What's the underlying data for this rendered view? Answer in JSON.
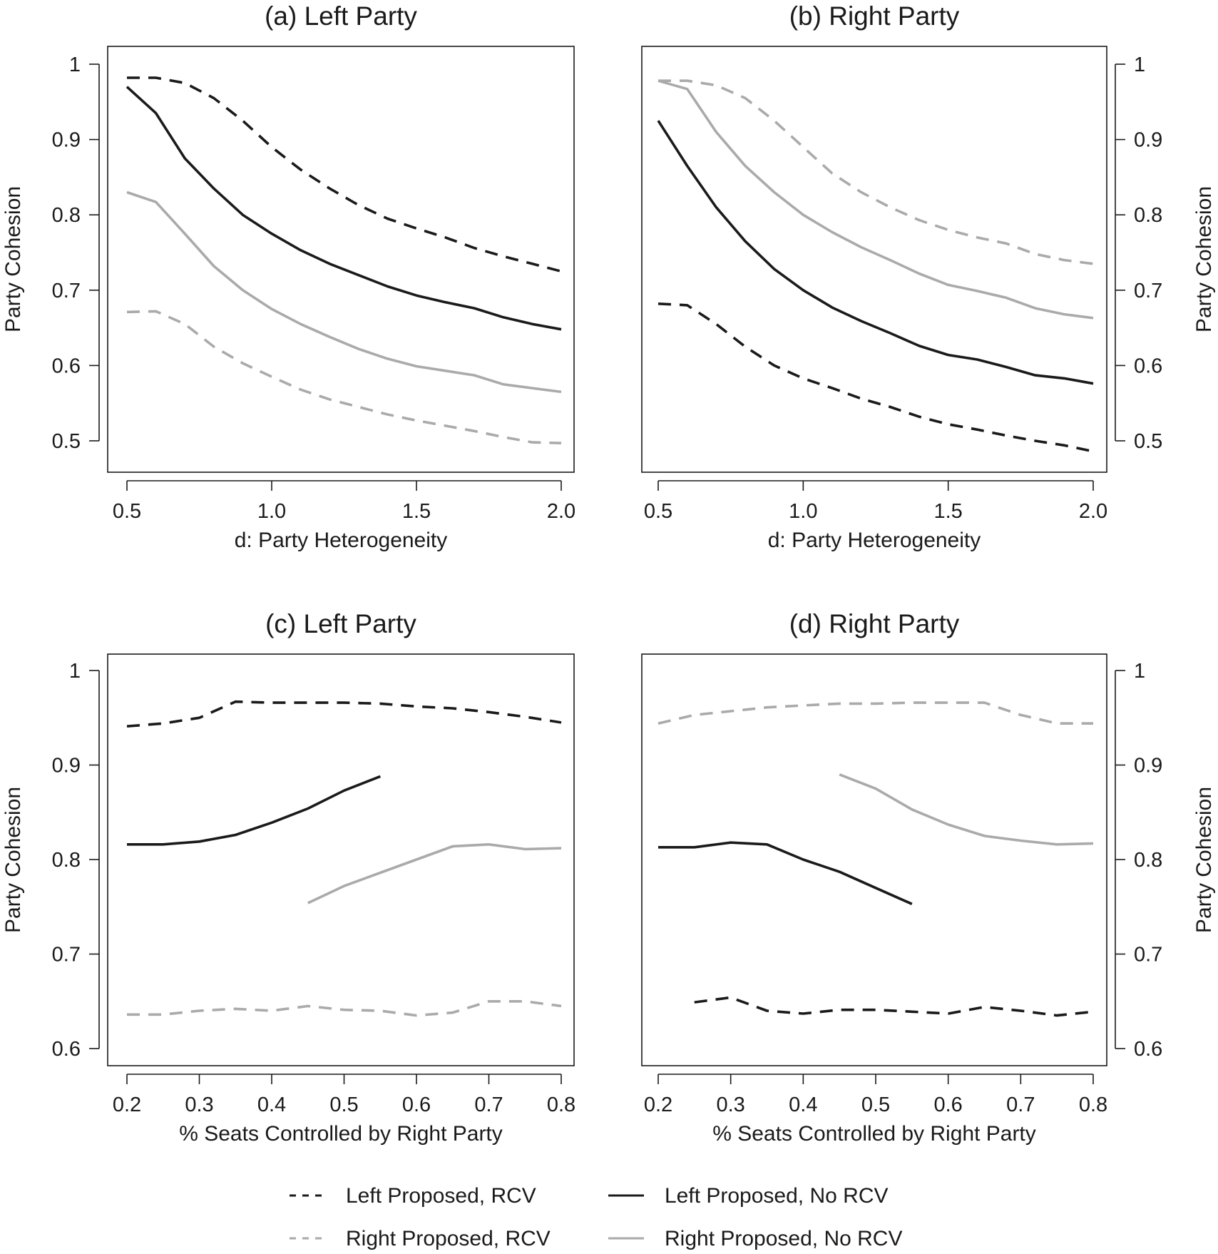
{
  "chart_data": [
    {
      "type": "line",
      "title": "(a) Left Party",
      "xlabel": "d: Party Heterogeneity",
      "ylabel": "Party Cohesion",
      "xlim": [
        0.5,
        2.0
      ],
      "ylim": [
        0.5,
        1.0
      ],
      "xticks": [
        0.5,
        1.0,
        1.5,
        2.0
      ],
      "xtick_labels": [
        "0.5",
        "1.0",
        "1.5",
        "2.0"
      ],
      "yticks": [
        0.5,
        0.6,
        0.7,
        0.8,
        0.9,
        1.0
      ],
      "ytick_labels": [
        "0.5",
        "0.6",
        "0.7",
        "0.8",
        "0.9",
        "1"
      ],
      "yaxis_side": "left",
      "grid": false,
      "series": [
        {
          "name": "Left Proposed, RCV",
          "color": "#1a1a1a",
          "dashed": true,
          "x": [
            0.5,
            0.6,
            0.7,
            0.8,
            0.9,
            1.0,
            1.1,
            1.2,
            1.3,
            1.4,
            1.5,
            1.6,
            1.7,
            1.8,
            1.9,
            2.0
          ],
          "y": [
            0.982,
            0.982,
            0.975,
            0.955,
            0.925,
            0.89,
            0.86,
            0.835,
            0.813,
            0.795,
            0.782,
            0.77,
            0.756,
            0.745,
            0.735,
            0.725
          ]
        },
        {
          "name": "Left Proposed, No RCV",
          "color": "#1a1a1a",
          "dashed": false,
          "x": [
            0.5,
            0.6,
            0.7,
            0.8,
            0.9,
            1.0,
            1.1,
            1.2,
            1.3,
            1.4,
            1.5,
            1.6,
            1.7,
            1.8,
            1.9,
            2.0
          ],
          "y": [
            0.97,
            0.935,
            0.875,
            0.835,
            0.8,
            0.775,
            0.753,
            0.735,
            0.72,
            0.705,
            0.693,
            0.684,
            0.676,
            0.664,
            0.655,
            0.648
          ]
        },
        {
          "name": "Right Proposed, No RCV",
          "color": "#aaaaaa",
          "dashed": false,
          "x": [
            0.5,
            0.6,
            0.7,
            0.8,
            0.9,
            1.0,
            1.1,
            1.2,
            1.3,
            1.4,
            1.5,
            1.6,
            1.7,
            1.8,
            1.9,
            2.0
          ],
          "y": [
            0.83,
            0.817,
            0.775,
            0.732,
            0.7,
            0.675,
            0.655,
            0.638,
            0.622,
            0.609,
            0.599,
            0.593,
            0.587,
            0.575,
            0.57,
            0.565
          ]
        },
        {
          "name": "Right Proposed, RCV",
          "color": "#aaaaaa",
          "dashed": true,
          "x": [
            0.5,
            0.6,
            0.7,
            0.8,
            0.9,
            1.0,
            1.1,
            1.2,
            1.3,
            1.4,
            1.5,
            1.6,
            1.7,
            1.8,
            1.9,
            2.0
          ],
          "y": [
            0.671,
            0.672,
            0.655,
            0.625,
            0.603,
            0.585,
            0.568,
            0.555,
            0.545,
            0.535,
            0.527,
            0.52,
            0.513,
            0.505,
            0.498,
            0.497
          ]
        }
      ]
    },
    {
      "type": "line",
      "title": "(b) Right Party",
      "xlabel": "d: Party Heterogeneity",
      "ylabel": "Party Cohesion",
      "xlim": [
        0.5,
        2.0
      ],
      "ylim": [
        0.5,
        1.0
      ],
      "xticks": [
        0.5,
        1.0,
        1.5,
        2.0
      ],
      "xtick_labels": [
        "0.5",
        "1.0",
        "1.5",
        "2.0"
      ],
      "yticks": [
        0.5,
        0.6,
        0.7,
        0.8,
        0.9,
        1.0
      ],
      "ytick_labels": [
        "0.5",
        "0.6",
        "0.7",
        "0.8",
        "0.9",
        "1"
      ],
      "yaxis_side": "right",
      "grid": false,
      "series": [
        {
          "name": "Right Proposed, RCV",
          "color": "#aaaaaa",
          "dashed": true,
          "x": [
            0.5,
            0.6,
            0.7,
            0.8,
            0.9,
            1.0,
            1.1,
            1.2,
            1.3,
            1.4,
            1.5,
            1.6,
            1.7,
            1.8,
            1.9,
            2.0
          ],
          "y": [
            0.978,
            0.978,
            0.972,
            0.955,
            0.925,
            0.89,
            0.855,
            0.83,
            0.81,
            0.793,
            0.78,
            0.77,
            0.762,
            0.748,
            0.74,
            0.735
          ]
        },
        {
          "name": "Right Proposed, No RCV",
          "color": "#aaaaaa",
          "dashed": false,
          "x": [
            0.5,
            0.6,
            0.7,
            0.8,
            0.9,
            1.0,
            1.1,
            1.2,
            1.3,
            1.4,
            1.5,
            1.6,
            1.7,
            1.8,
            1.9,
            2.0
          ],
          "y": [
            0.978,
            0.967,
            0.91,
            0.865,
            0.83,
            0.8,
            0.777,
            0.757,
            0.74,
            0.722,
            0.707,
            0.699,
            0.69,
            0.676,
            0.668,
            0.663
          ]
        },
        {
          "name": "Left Proposed, No RCV",
          "color": "#1a1a1a",
          "dashed": false,
          "x": [
            0.5,
            0.6,
            0.7,
            0.8,
            0.9,
            1.0,
            1.1,
            1.2,
            1.3,
            1.4,
            1.5,
            1.6,
            1.7,
            1.8,
            1.9,
            2.0
          ],
          "y": [
            0.925,
            0.865,
            0.81,
            0.765,
            0.728,
            0.7,
            0.677,
            0.659,
            0.643,
            0.626,
            0.614,
            0.608,
            0.598,
            0.587,
            0.583,
            0.576
          ]
        },
        {
          "name": "Left Proposed, RCV",
          "color": "#1a1a1a",
          "dashed": true,
          "x": [
            0.5,
            0.6,
            0.7,
            0.8,
            0.9,
            1.0,
            1.1,
            1.2,
            1.3,
            1.4,
            1.5,
            1.6,
            1.7,
            1.8,
            1.9,
            2.0
          ],
          "y": [
            0.682,
            0.68,
            0.655,
            0.625,
            0.6,
            0.583,
            0.57,
            0.556,
            0.545,
            0.532,
            0.522,
            0.515,
            0.507,
            0.5,
            0.494,
            0.486
          ]
        }
      ]
    },
    {
      "type": "line",
      "title": "(c) Left Party",
      "xlabel": "% Seats Controlled by Right Party",
      "ylabel": "Party Cohesion",
      "xlim": [
        0.2,
        0.8
      ],
      "ylim": [
        0.6,
        1.0
      ],
      "xticks": [
        0.2,
        0.3,
        0.4,
        0.5,
        0.6,
        0.7,
        0.8
      ],
      "xtick_labels": [
        "0.2",
        "0.3",
        "0.4",
        "0.5",
        "0.6",
        "0.7",
        "0.8"
      ],
      "yticks": [
        0.6,
        0.7,
        0.8,
        0.9,
        1.0
      ],
      "ytick_labels": [
        "0.6",
        "0.7",
        "0.8",
        "0.9",
        "1"
      ],
      "yaxis_side": "left",
      "grid": false,
      "series": [
        {
          "name": "Left Proposed, RCV",
          "color": "#1a1a1a",
          "dashed": true,
          "x": [
            0.2,
            0.25,
            0.3,
            0.35,
            0.4,
            0.45,
            0.5,
            0.55,
            0.6,
            0.65,
            0.7,
            0.75,
            0.8
          ],
          "y": [
            0.941,
            0.944,
            0.95,
            0.967,
            0.966,
            0.966,
            0.966,
            0.965,
            0.962,
            0.96,
            0.956,
            0.951,
            0.945
          ]
        },
        {
          "name": "Left Proposed, No RCV",
          "color": "#1a1a1a",
          "dashed": false,
          "x": [
            0.2,
            0.25,
            0.3,
            0.35,
            0.4,
            0.45,
            0.5,
            0.55
          ],
          "y": [
            0.816,
            0.816,
            0.819,
            0.826,
            0.839,
            0.854,
            0.873,
            0.888
          ]
        },
        {
          "name": "Right Proposed, No RCV",
          "color": "#aaaaaa",
          "dashed": false,
          "x": [
            0.45,
            0.5,
            0.55,
            0.6,
            0.65,
            0.7,
            0.75,
            0.8
          ],
          "y": [
            0.754,
            0.772,
            0.786,
            0.8,
            0.814,
            0.816,
            0.811,
            0.812
          ]
        },
        {
          "name": "Right Proposed, RCV",
          "color": "#aaaaaa",
          "dashed": true,
          "x": [
            0.2,
            0.25,
            0.3,
            0.35,
            0.4,
            0.45,
            0.5,
            0.55,
            0.6,
            0.65,
            0.7,
            0.75,
            0.8
          ],
          "y": [
            0.636,
            0.636,
            0.64,
            0.642,
            0.64,
            0.645,
            0.641,
            0.64,
            0.635,
            0.638,
            0.65,
            0.65,
            0.645
          ]
        }
      ]
    },
    {
      "type": "line",
      "title": "(d) Right Party",
      "xlabel": "% Seats Controlled by Right Party",
      "ylabel": "Party Cohesion",
      "xlim": [
        0.2,
        0.8
      ],
      "ylim": [
        0.6,
        1.0
      ],
      "xticks": [
        0.2,
        0.3,
        0.4,
        0.5,
        0.6,
        0.7,
        0.8
      ],
      "xtick_labels": [
        "0.2",
        "0.3",
        "0.4",
        "0.5",
        "0.6",
        "0.7",
        "0.8"
      ],
      "yticks": [
        0.6,
        0.7,
        0.8,
        0.9,
        1.0
      ],
      "ytick_labels": [
        "0.6",
        "0.7",
        "0.8",
        "0.9",
        "1"
      ],
      "yaxis_side": "right",
      "grid": false,
      "series": [
        {
          "name": "Right Proposed, RCV",
          "color": "#aaaaaa",
          "dashed": true,
          "x": [
            0.2,
            0.25,
            0.3,
            0.35,
            0.4,
            0.45,
            0.5,
            0.55,
            0.6,
            0.65,
            0.7,
            0.75,
            0.8
          ],
          "y": [
            0.944,
            0.953,
            0.957,
            0.961,
            0.963,
            0.965,
            0.965,
            0.966,
            0.966,
            0.966,
            0.953,
            0.944,
            0.944
          ]
        },
        {
          "name": "Right Proposed, No RCV",
          "color": "#aaaaaa",
          "dashed": false,
          "x": [
            0.45,
            0.5,
            0.55,
            0.6,
            0.65,
            0.7,
            0.75,
            0.8
          ],
          "y": [
            0.89,
            0.875,
            0.853,
            0.837,
            0.825,
            0.82,
            0.816,
            0.817
          ]
        },
        {
          "name": "Left Proposed, No RCV",
          "color": "#1a1a1a",
          "dashed": false,
          "x": [
            0.2,
            0.25,
            0.3,
            0.35,
            0.4,
            0.45,
            0.5,
            0.55
          ],
          "y": [
            0.813,
            0.813,
            0.818,
            0.816,
            0.8,
            0.787,
            0.77,
            0.753
          ]
        },
        {
          "name": "Left Proposed, RCV",
          "color": "#1a1a1a",
          "dashed": true,
          "x": [
            0.25,
            0.3,
            0.35,
            0.4,
            0.45,
            0.5,
            0.55,
            0.6,
            0.65,
            0.7,
            0.75,
            0.8
          ],
          "y": [
            0.649,
            0.654,
            0.64,
            0.637,
            0.641,
            0.641,
            0.639,
            0.637,
            0.644,
            0.64,
            0.635,
            0.639
          ]
        }
      ]
    }
  ],
  "legend": {
    "placement": "bottom",
    "items": [
      {
        "label": "Left Proposed, RCV",
        "color": "#1a1a1a",
        "dashed": true
      },
      {
        "label": "Left Proposed, No RCV",
        "color": "#1a1a1a",
        "dashed": false
      },
      {
        "label": "Right Proposed, RCV",
        "color": "#aaaaaa",
        "dashed": true
      },
      {
        "label": "Right Proposed, No RCV",
        "color": "#aaaaaa",
        "dashed": false
      }
    ]
  }
}
